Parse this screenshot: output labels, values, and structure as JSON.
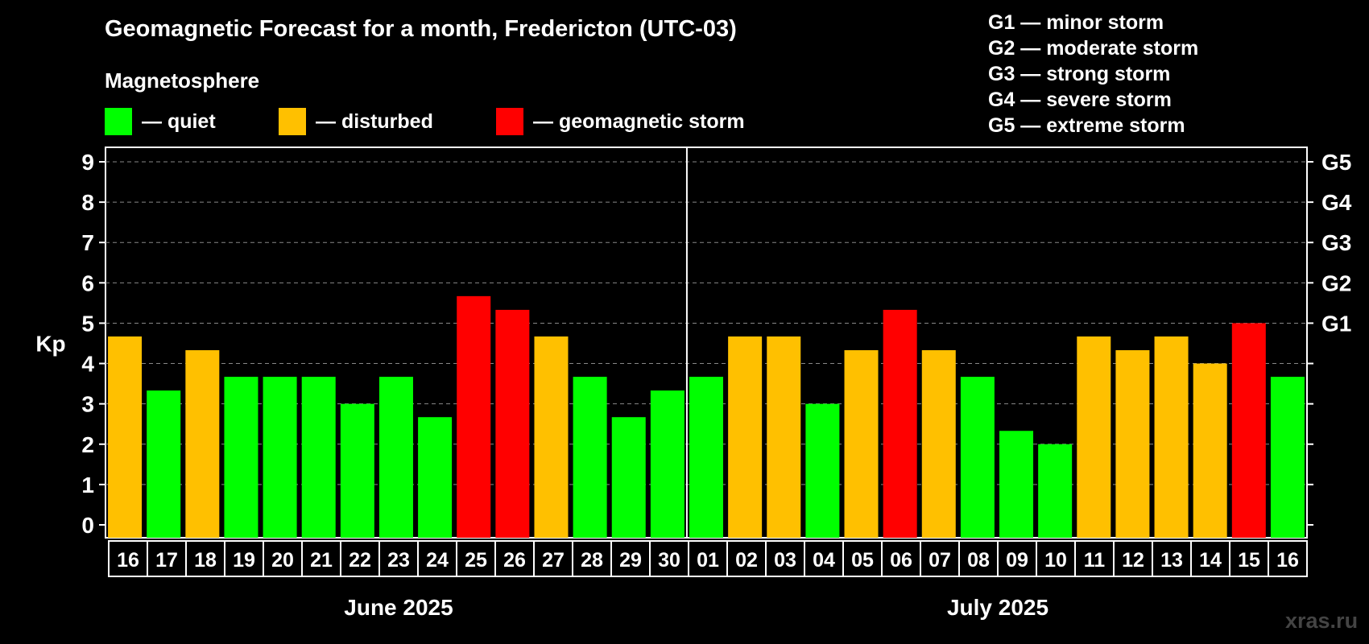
{
  "title": "Geomagnetic Forecast for a month, Fredericton (UTC-03)",
  "magnetosphere_label": "Magnetosphere",
  "legend": [
    {
      "label": "— quiet",
      "color": "#00ff00"
    },
    {
      "label": "— disturbed",
      "color": "#ffc000"
    },
    {
      "label": "— geomagnetic storm",
      "color": "#ff0000"
    }
  ],
  "storm_scale": [
    "G1 — minor storm",
    "G2 — moderate storm",
    "G3 — strong storm",
    "G4 — severe storm",
    "G5 — extreme storm"
  ],
  "watermark": "xras.ru",
  "chart_data": {
    "type": "bar",
    "ylabel": "Kp",
    "ylim": [
      0,
      9
    ],
    "yticks": [
      0,
      1,
      2,
      3,
      4,
      5,
      6,
      7,
      8,
      9
    ],
    "right_axis_labels": [
      {
        "kp": 5,
        "label": "G1"
      },
      {
        "kp": 6,
        "label": "G2"
      },
      {
        "kp": 7,
        "label": "G3"
      },
      {
        "kp": 8,
        "label": "G4"
      },
      {
        "kp": 9,
        "label": "G5"
      }
    ],
    "grid": true,
    "months": [
      {
        "label": "June 2025",
        "days": 15
      },
      {
        "label": "July 2025",
        "days": 16
      }
    ],
    "categories": [
      "16",
      "17",
      "18",
      "19",
      "20",
      "21",
      "22",
      "23",
      "24",
      "25",
      "26",
      "27",
      "28",
      "29",
      "30",
      "01",
      "02",
      "03",
      "04",
      "05",
      "06",
      "07",
      "08",
      "09",
      "10",
      "11",
      "12",
      "13",
      "14",
      "15",
      "16"
    ],
    "values": [
      4.67,
      3.33,
      4.33,
      3.67,
      3.67,
      3.67,
      3.0,
      3.67,
      2.67,
      5.67,
      5.33,
      4.67,
      3.67,
      2.67,
      3.33,
      3.67,
      4.67,
      4.67,
      3.0,
      4.33,
      5.33,
      4.33,
      3.67,
      2.33,
      2.0,
      4.67,
      4.33,
      4.67,
      4.0,
      5.0,
      3.67
    ],
    "levels": [
      "disturbed",
      "quiet",
      "disturbed",
      "quiet",
      "quiet",
      "quiet",
      "quiet",
      "quiet",
      "quiet",
      "storm",
      "storm",
      "disturbed",
      "quiet",
      "quiet",
      "quiet",
      "quiet",
      "disturbed",
      "disturbed",
      "quiet",
      "disturbed",
      "storm",
      "disturbed",
      "quiet",
      "quiet",
      "quiet",
      "disturbed",
      "disturbed",
      "disturbed",
      "disturbed",
      "storm",
      "quiet"
    ],
    "level_colors": {
      "quiet": "#00ff00",
      "disturbed": "#ffc000",
      "storm": "#ff0000"
    }
  }
}
